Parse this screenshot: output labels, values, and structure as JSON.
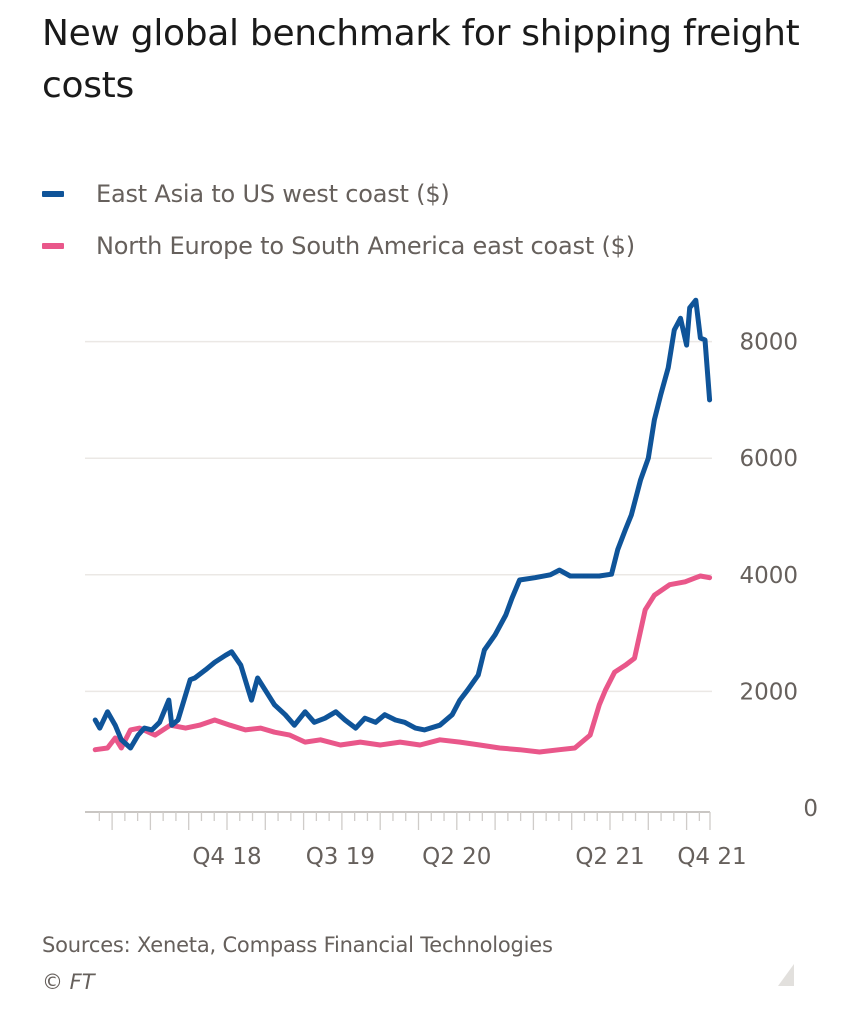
{
  "chart_data": {
    "type": "line",
    "title": "New global benchmark for shipping freight costs",
    "xlabel": "",
    "ylabel": "",
    "ylim": [
      0,
      9000
    ],
    "xlim": [
      2017.85,
      2021.92
    ],
    "grid": true,
    "legend_position": "top-left",
    "y_axis_side": "right",
    "y_ticks": [
      0,
      2000,
      4000,
      6000,
      8000
    ],
    "y_tick_labels": [
      "0",
      "2000",
      "4000",
      "6000",
      "8000"
    ],
    "x_tick_labels": [
      {
        "label": "Q4 18",
        "x": 2018.75
      },
      {
        "label": "Q3 19",
        "x": 2019.49
      },
      {
        "label": "Q2 20",
        "x": 2020.25
      },
      {
        "label": "Q2 21",
        "x": 2021.25
      },
      {
        "label": "Q4 21",
        "x": 2021.92
      }
    ],
    "series": [
      {
        "name": "East Asia to US west coast ($)",
        "color": "#0f5499",
        "x": [
          2017.89,
          2017.92,
          2017.97,
          2018.02,
          2018.06,
          2018.12,
          2018.17,
          2018.21,
          2018.26,
          2018.31,
          2018.37,
          2018.39,
          2018.43,
          2018.48,
          2018.51,
          2018.54,
          2018.61,
          2018.67,
          2018.74,
          2018.78,
          2018.84,
          2018.89,
          2018.91,
          2018.95,
          2019.0,
          2019.06,
          2019.13,
          2019.19,
          2019.26,
          2019.32,
          2019.39,
          2019.46,
          2019.52,
          2019.59,
          2019.65,
          2019.72,
          2019.78,
          2019.85,
          2019.91,
          2019.98,
          2020.04,
          2020.14,
          2020.22,
          2020.27,
          2020.32,
          2020.39,
          2020.43,
          2020.5,
          2020.57,
          2020.61,
          2020.66,
          2020.76,
          2020.86,
          2020.92,
          2020.99,
          2021.09,
          2021.18,
          2021.26,
          2021.3,
          2021.35,
          2021.39,
          2021.45,
          2021.5,
          2021.54,
          2021.58,
          2021.63,
          2021.67,
          2021.71,
          2021.75,
          2021.77,
          2021.81,
          2021.84,
          2021.87,
          2021.9
        ],
        "values": [
          1510,
          1370,
          1650,
          1420,
          1170,
          1030,
          1250,
          1370,
          1340,
          1470,
          1850,
          1420,
          1510,
          1940,
          2200,
          2230,
          2370,
          2500,
          2620,
          2680,
          2450,
          2020,
          1850,
          2230,
          2020,
          1770,
          1600,
          1420,
          1650,
          1470,
          1540,
          1650,
          1510,
          1370,
          1540,
          1470,
          1600,
          1510,
          1470,
          1370,
          1340,
          1420,
          1600,
          1850,
          2020,
          2280,
          2710,
          2970,
          3310,
          3600,
          3910,
          3950,
          4000,
          4080,
          3980,
          3980,
          3980,
          4010,
          4430,
          4770,
          5030,
          5630,
          6000,
          6660,
          7080,
          7550,
          8200,
          8400,
          7940,
          8580,
          8710,
          8060,
          8030,
          7000
        ]
      },
      {
        "name": "North Europe to South America east coast ($)",
        "color": "#e9578a",
        "x": [
          2017.89,
          2017.97,
          2018.02,
          2018.06,
          2018.12,
          2018.18,
          2018.28,
          2018.38,
          2018.48,
          2018.57,
          2018.67,
          2018.77,
          2018.87,
          2018.97,
          2019.06,
          2019.16,
          2019.26,
          2019.36,
          2019.49,
          2019.62,
          2019.75,
          2019.88,
          2020.01,
          2020.14,
          2020.27,
          2020.4,
          2020.53,
          2020.66,
          2020.79,
          2020.92,
          2021.02,
          2021.12,
          2021.18,
          2021.22,
          2021.28,
          2021.35,
          2021.41,
          2021.48,
          2021.54,
          2021.64,
          2021.74,
          2021.81,
          2021.84,
          2021.9
        ],
        "values": [
          1000,
          1030,
          1200,
          1030,
          1340,
          1370,
          1250,
          1420,
          1370,
          1420,
          1510,
          1420,
          1340,
          1370,
          1300,
          1250,
          1130,
          1170,
          1080,
          1130,
          1080,
          1130,
          1080,
          1170,
          1130,
          1080,
          1030,
          1000,
          960,
          1000,
          1030,
          1250,
          1770,
          2020,
          2330,
          2450,
          2570,
          3400,
          3650,
          3830,
          3880,
          3950,
          3980,
          3950
        ]
      }
    ]
  },
  "header": {
    "title": "New global benchmark for shipping freight costs"
  },
  "legend": [
    {
      "label": "East Asia to US west coast ($)",
      "color": "#0f5499"
    },
    {
      "label": "North Europe to South America east coast ($)",
      "color": "#e9578a"
    }
  ],
  "footer": {
    "source": "Sources: Xeneta, Compass Financial Technologies",
    "copyright": "© FT"
  }
}
